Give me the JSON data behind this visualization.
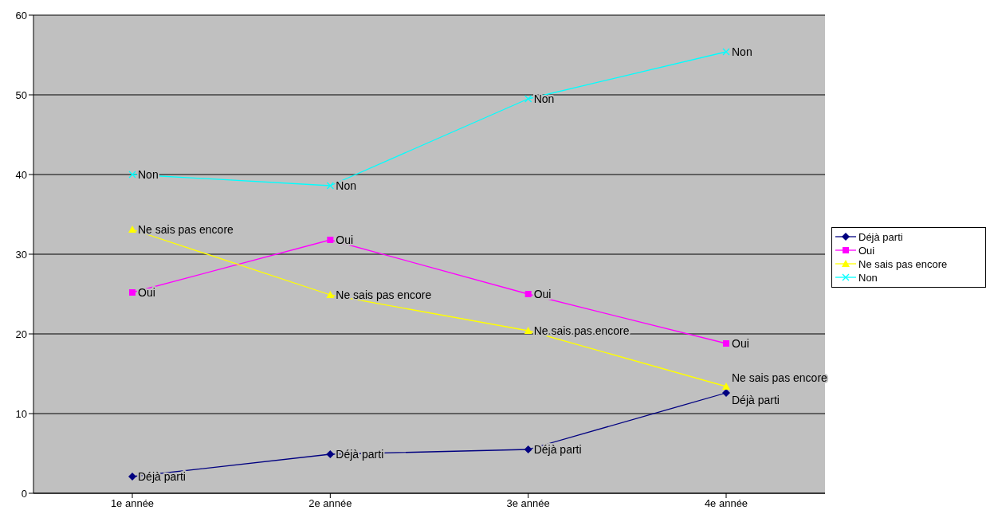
{
  "chart_data": {
    "type": "line",
    "categories": [
      "1e année",
      "2e année",
      "3e année",
      "4e année"
    ],
    "series": [
      {
        "name": "Déjà parti",
        "color": "#000080",
        "marker": "diamond",
        "values": [
          2.1,
          4.9,
          5.5,
          12.6
        ]
      },
      {
        "name": "Oui",
        "color": "#ff00ff",
        "marker": "square",
        "values": [
          25.2,
          31.8,
          25.0,
          18.8
        ]
      },
      {
        "name": "Ne sais pas encore",
        "color": "#ffff00",
        "marker": "triangle",
        "values": [
          33.1,
          24.9,
          20.4,
          13.4
        ]
      },
      {
        "name": "Non",
        "color": "#00ffff",
        "marker": "cross",
        "values": [
          40.0,
          38.6,
          49.5,
          55.4
        ]
      }
    ],
    "ylim": [
      0,
      60
    ],
    "yticks": [
      0,
      10,
      20,
      30,
      40,
      50,
      60
    ],
    "grid": "y",
    "legend": "right",
    "line_style": "solid"
  }
}
